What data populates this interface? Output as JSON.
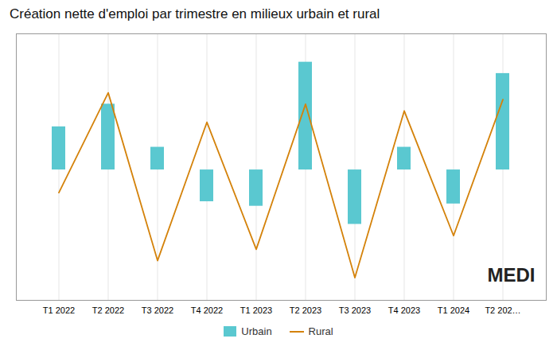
{
  "chart_data": {
    "type": "bar",
    "title": "Création nette d'emploi par trimestre en milieux urbain et rural",
    "categories": [
      "T1 2022",
      "T2 2022",
      "T3 2022",
      "T4 2022",
      "T1 2023",
      "T2 2023",
      "T3 2023",
      "T4 2023",
      "T1 2024",
      "T2 202…"
    ],
    "series": [
      {
        "name": "Urbain",
        "type": "bar",
        "color": "#5ac8d0",
        "values": [
          38000,
          58000,
          20000,
          -28000,
          -32000,
          95000,
          -48000,
          20000,
          -30000,
          85000
        ]
      },
      {
        "name": "Rural",
        "type": "line",
        "color": "#d4820a",
        "values": [
          -20000,
          68000,
          -80000,
          42000,
          -70000,
          58000,
          -95000,
          52000,
          -58000,
          62000
        ]
      }
    ],
    "ylim": [
      -115000,
      120000
    ],
    "yticks": [],
    "grid": true,
    "tick_labels": "x",
    "legend": "bottom",
    "annotations": [
      {
        "text": "MEDI"
      }
    ]
  }
}
